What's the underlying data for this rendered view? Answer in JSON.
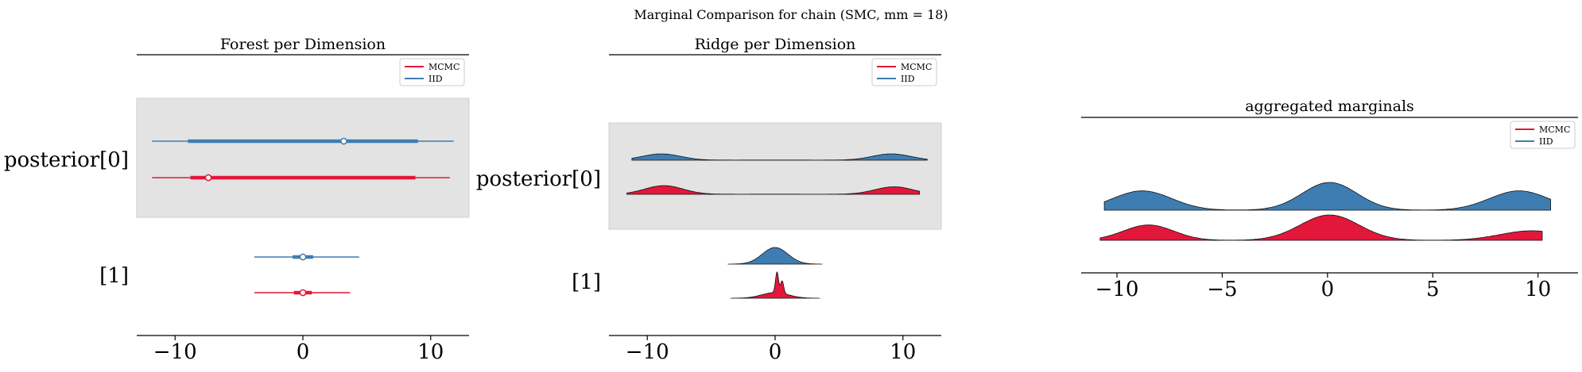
{
  "figure": {
    "title": "Marginal Comparison for chain (SMC, mm = 18)"
  },
  "colors": {
    "mcmc": "#E3173A",
    "iid": "#3E7DB2",
    "band": "#E3E3E3",
    "band_edge": "#CFCFCF",
    "axis": "#000000"
  },
  "chart_data": [
    {
      "type": "forest",
      "title": "Forest per Dimension",
      "xlim": [
        -13,
        13
      ],
      "xticks": [
        -10,
        0,
        10
      ],
      "xtick_labels": [
        "−10",
        "0",
        "10"
      ],
      "legend": {
        "position": "top-right",
        "entries": [
          "MCMC",
          "IID"
        ]
      },
      "rows": [
        {
          "label": "posterior[0]",
          "shaded": true,
          "series": [
            {
              "name": "IID",
              "hdi": [
                -11.8,
                11.8
              ],
              "iqr": [
                -9.0,
                9.0
              ],
              "center": 3.2
            },
            {
              "name": "MCMC",
              "hdi": [
                -11.8,
                11.5
              ],
              "iqr": [
                -8.8,
                8.8
              ],
              "center": -7.4
            }
          ]
        },
        {
          "label": "[1]",
          "shaded": false,
          "series": [
            {
              "name": "IID",
              "hdi": [
                -3.8,
                4.4
              ],
              "iqr": [
                -0.8,
                0.8
              ],
              "center": 0.0
            },
            {
              "name": "MCMC",
              "hdi": [
                -3.8,
                3.7
              ],
              "iqr": [
                -0.7,
                0.7
              ],
              "center": 0.0
            }
          ]
        }
      ]
    },
    {
      "type": "ridge",
      "title": "Ridge per Dimension",
      "xlim": [
        -13,
        13
      ],
      "xticks": [
        -10,
        0,
        10
      ],
      "xtick_labels": [
        "−10",
        "0",
        "10"
      ],
      "legend": {
        "position": "top-right",
        "entries": [
          "MCMC",
          "IID"
        ]
      },
      "rows": [
        {
          "label": "posterior[0]",
          "shaded": true,
          "series": [
            {
              "name": "IID",
              "range": [
                -11.2,
                11.9
              ],
              "components": [
                [
                  0.48,
                  -8.9,
                  1.5
                ],
                [
                  0.04,
                  0.0,
                  6.0
                ],
                [
                  0.48,
                  9.1,
                  1.5
                ]
              ]
            },
            {
              "name": "MCMC",
              "range": [
                -11.6,
                11.3
              ],
              "components": [
                [
                  0.52,
                  -8.7,
                  1.5
                ],
                [
                  0.03,
                  0.0,
                  6.0
                ],
                [
                  0.45,
                  9.3,
                  1.5
                ]
              ]
            }
          ]
        },
        {
          "label": "[1]",
          "shaded": false,
          "series": [
            {
              "name": "IID",
              "range": [
                -3.7,
                3.7
              ],
              "components": [
                [
                  1.0,
                  0.0,
                  1.0
                ]
              ]
            },
            {
              "name": "MCMC",
              "range": [
                -3.5,
                3.5
              ],
              "components": [
                [
                  0.25,
                  0.15,
                  0.12
                ],
                [
                  0.15,
                  0.55,
                  0.12
                ],
                [
                  0.6,
                  0.0,
                  1.05
                ]
              ]
            }
          ]
        }
      ]
    },
    {
      "type": "ridge",
      "title": "aggregated marginals",
      "xlim": [
        -11.7,
        11.9
      ],
      "xticks": [
        -10,
        -5,
        0,
        5,
        10
      ],
      "xtick_labels": [
        "−10",
        "−5",
        "0",
        "5",
        "10"
      ],
      "legend": {
        "position": "top-right",
        "entries": [
          "MCMC",
          "IID"
        ]
      },
      "rows": [
        {
          "label": "",
          "shaded": false,
          "series": [
            {
              "name": "IID",
              "range": [
                -10.6,
                10.6
              ],
              "components": [
                [
                  0.3,
                  -8.8,
                  1.4
                ],
                [
                  0.4,
                  0.1,
                  1.3
                ],
                [
                  0.3,
                  9.1,
                  1.4
                ]
              ]
            },
            {
              "name": "MCMC",
              "range": [
                -10.8,
                10.2
              ],
              "components": [
                [
                  0.27,
                  -8.5,
                  1.2
                ],
                [
                  0.52,
                  0.1,
                  1.4
                ],
                [
                  0.21,
                  9.7,
                  1.5
                ]
              ]
            }
          ]
        }
      ]
    }
  ]
}
